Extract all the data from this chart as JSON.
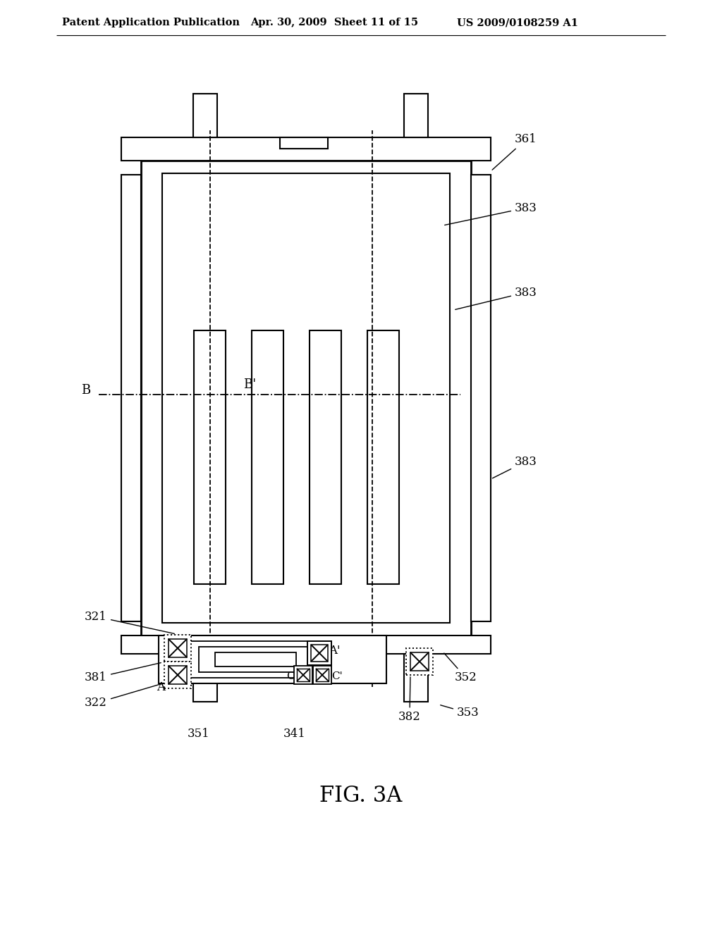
{
  "header_left": "Patent Application Publication",
  "header_mid": "Apr. 30, 2009  Sheet 11 of 15",
  "header_right": "US 2009/0108259 A1",
  "figure_label": "FIG. 3A",
  "bg_color": "#ffffff",
  "line_color": "#000000",
  "header_fontsize": 10.5,
  "fig_label_fontsize": 22
}
